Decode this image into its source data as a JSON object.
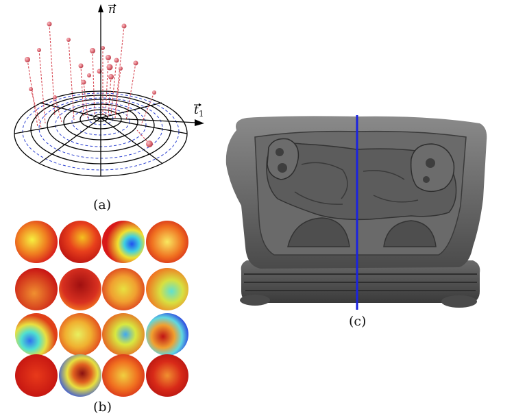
{
  "panels": {
    "a": {
      "caption": "(a)",
      "normal_label": "n",
      "tangent_label": "t",
      "tangent_subscript": "1"
    },
    "b": {
      "caption": "(b)",
      "grid_rows": 4,
      "grid_cols": 4
    },
    "c": {
      "caption": "(c)"
    }
  },
  "colors": {
    "grid_line": "#000000",
    "dashed_circle": "#2a3fd0",
    "spike": "#d84a55",
    "ball": "#e6838c",
    "slice_line": "#1a22e0",
    "mesh": "#5a5a5a"
  }
}
